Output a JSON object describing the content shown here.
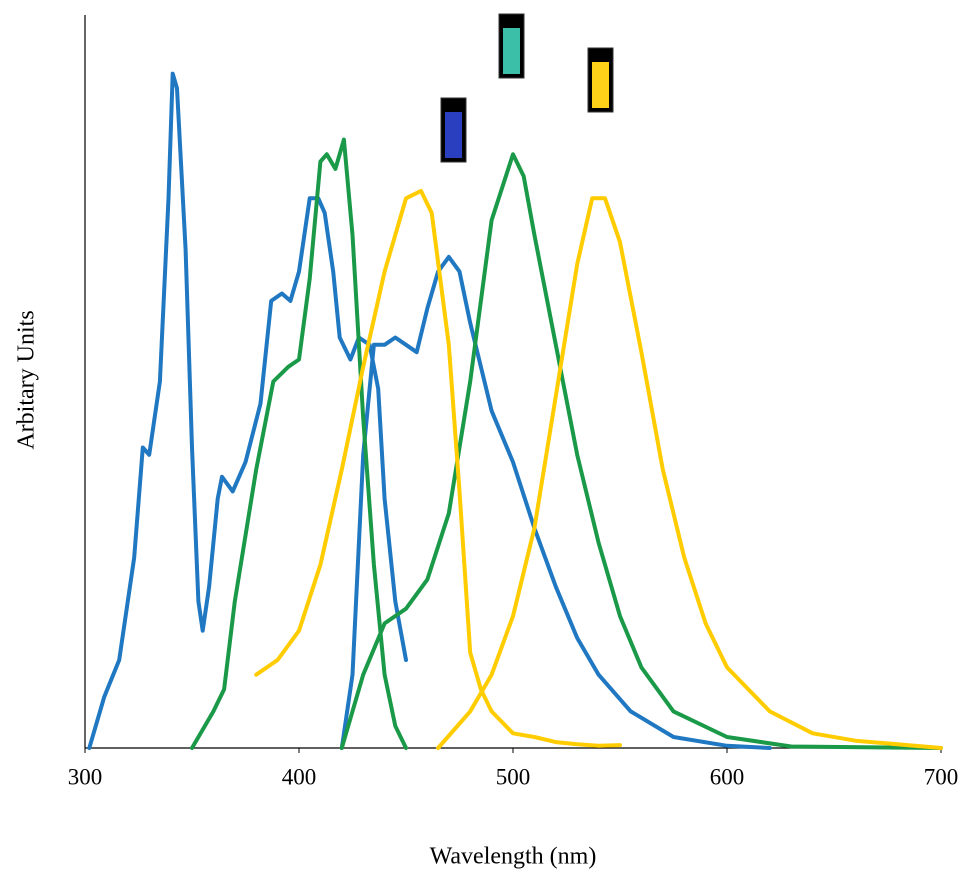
{
  "chart_data": {
    "type": "line",
    "x_label": "Wavelength (nm)",
    "y_label": "Arbitary Units",
    "xlim": [
      300,
      700
    ],
    "xticks": [
      300,
      400,
      500,
      600,
      700
    ],
    "ylim": [
      0,
      1
    ],
    "grid": false,
    "series": [
      {
        "color": "#1f78c1",
        "x": [
          302,
          309,
          316,
          323,
          327,
          330,
          335,
          339,
          341,
          343,
          347,
          350,
          353,
          355,
          358,
          362,
          364,
          369,
          375,
          382,
          387,
          392,
          396,
          400,
          405,
          409,
          412,
          416,
          419,
          424,
          428,
          433,
          437,
          440,
          445,
          450
        ],
        "values": [
          0,
          0.07,
          0.12,
          0.26,
          0.41,
          0.4,
          0.5,
          0.75,
          0.92,
          0.9,
          0.68,
          0.41,
          0.2,
          0.16,
          0.22,
          0.34,
          0.37,
          0.35,
          0.39,
          0.47,
          0.61,
          0.62,
          0.61,
          0.65,
          0.75,
          0.75,
          0.73,
          0.65,
          0.56,
          0.53,
          0.56,
          0.55,
          0.49,
          0.34,
          0.2,
          0.12
        ]
      },
      {
        "color": "#1f78c1",
        "x": [
          420,
          425,
          430,
          435,
          440,
          445,
          450,
          455,
          460,
          465,
          470,
          475,
          480,
          490,
          500,
          510,
          520,
          530,
          540,
          555,
          575,
          600,
          620
        ],
        "values": [
          0,
          0.1,
          0.4,
          0.55,
          0.55,
          0.56,
          0.55,
          0.54,
          0.6,
          0.65,
          0.67,
          0.65,
          0.58,
          0.46,
          0.39,
          0.3,
          0.22,
          0.15,
          0.1,
          0.05,
          0.015,
          0.003,
          0
        ]
      },
      {
        "color": "#1a9a48",
        "x": [
          350,
          360,
          365,
          370,
          380,
          388,
          395,
          400,
          405,
          410,
          413,
          417,
          421,
          425,
          430,
          435,
          440,
          445,
          450
        ],
        "values": [
          0,
          0.05,
          0.08,
          0.2,
          0.38,
          0.5,
          0.52,
          0.53,
          0.64,
          0.8,
          0.81,
          0.79,
          0.83,
          0.7,
          0.45,
          0.25,
          0.1,
          0.03,
          0
        ]
      },
      {
        "color": "#1a9a48",
        "x": [
          420,
          430,
          440,
          450,
          460,
          470,
          480,
          490,
          500,
          505,
          510,
          520,
          530,
          540,
          550,
          560,
          575,
          600,
          630,
          700
        ],
        "values": [
          0,
          0.1,
          0.17,
          0.19,
          0.23,
          0.32,
          0.5,
          0.72,
          0.81,
          0.78,
          0.7,
          0.55,
          0.4,
          0.28,
          0.18,
          0.11,
          0.05,
          0.015,
          0.002,
          0
        ]
      },
      {
        "color": "#ffcc00",
        "x": [
          380,
          390,
          400,
          410,
          420,
          430,
          440,
          450,
          457,
          462,
          470,
          475,
          480,
          485,
          490,
          500,
          510,
          520,
          530,
          540,
          550
        ],
        "values": [
          0.1,
          0.12,
          0.16,
          0.25,
          0.38,
          0.52,
          0.65,
          0.75,
          0.76,
          0.73,
          0.55,
          0.35,
          0.13,
          0.08,
          0.05,
          0.02,
          0.015,
          0.008,
          0.005,
          0.003,
          0.004
        ]
      },
      {
        "color": "#ffcc00",
        "x": [
          465,
          480,
          490,
          500,
          510,
          520,
          530,
          537,
          543,
          550,
          560,
          570,
          580,
          590,
          600,
          620,
          640,
          660,
          700
        ],
        "values": [
          0,
          0.05,
          0.1,
          0.18,
          0.3,
          0.48,
          0.66,
          0.75,
          0.75,
          0.69,
          0.54,
          0.38,
          0.26,
          0.17,
          0.11,
          0.05,
          0.02,
          0.01,
          0
        ]
      }
    ]
  }
}
